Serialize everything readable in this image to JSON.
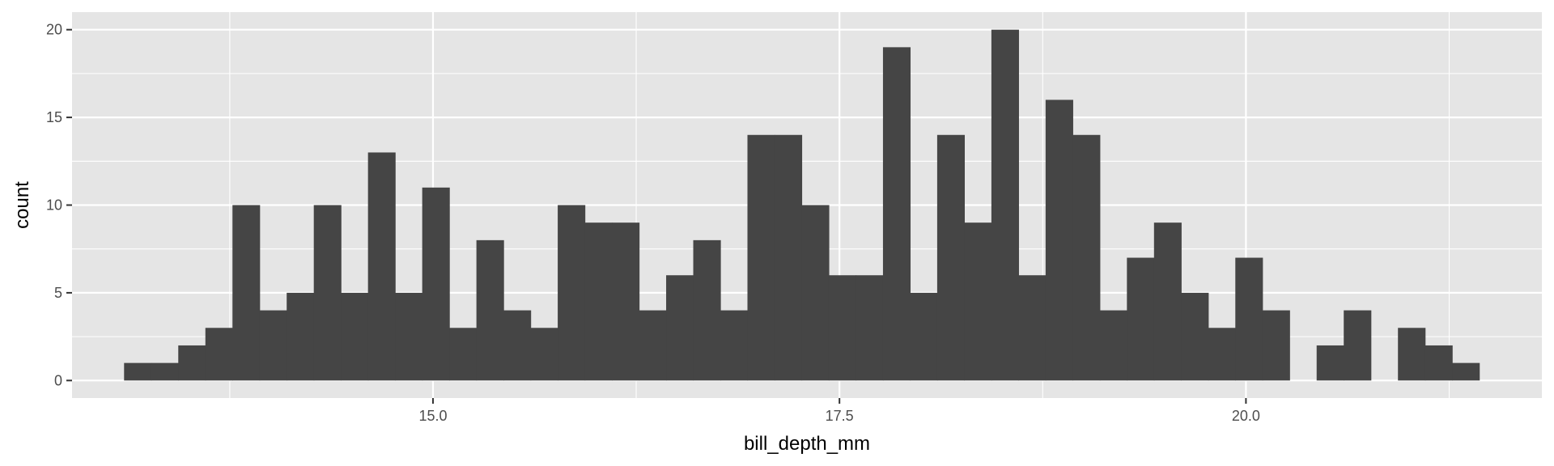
{
  "chart_data": {
    "type": "bar",
    "xlabel": "bill_depth_mm",
    "ylabel": "count",
    "xlim": [
      12.78,
      21.82
    ],
    "ylim": [
      -1,
      21
    ],
    "bin_start": 13.1,
    "bin_width": 0.1667,
    "counts": [
      1,
      1,
      2,
      3,
      10,
      4,
      5,
      10,
      5,
      13,
      5,
      11,
      3,
      8,
      4,
      3,
      10,
      9,
      9,
      4,
      6,
      8,
      4,
      14,
      14,
      10,
      6,
      6,
      19,
      5,
      14,
      9,
      20,
      6,
      16,
      14,
      4,
      7,
      9,
      5,
      3,
      7,
      4,
      0,
      2,
      4,
      0,
      3,
      2,
      1
    ],
    "x_ticks": [
      {
        "value": 15.0,
        "label": "15.0"
      },
      {
        "value": 17.5,
        "label": "17.5"
      },
      {
        "value": 20.0,
        "label": "20.0"
      }
    ],
    "y_ticks": [
      {
        "value": 0,
        "label": "0"
      },
      {
        "value": 5,
        "label": "5"
      },
      {
        "value": 10,
        "label": "10"
      },
      {
        "value": 15,
        "label": "15"
      },
      {
        "value": 20,
        "label": "20"
      }
    ],
    "grid": true,
    "colors": {
      "panel_background": "#e5e5e5",
      "grid": "#ffffff",
      "bar_fill": "#454545",
      "tick_mark": "#333333",
      "tick_label": "#4d4d4d",
      "axis_title": "#000000"
    }
  }
}
